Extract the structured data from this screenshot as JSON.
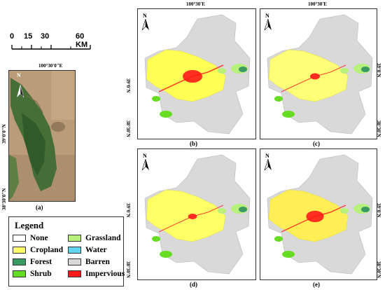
{
  "scale_bar": {
    "ticks": [
      "0",
      "15",
      "30",
      "60 KM"
    ]
  },
  "overview": {
    "top_coord": "100°30'0\"E",
    "left_coord_1": "39°0'0\"N",
    "left_coord_2": "38°30'0\"N",
    "caption": "(a)"
  },
  "panels": [
    {
      "caption": "(b)",
      "top_coord": "100°30'E",
      "lat1": "39°0'N",
      "lat2": "38°30'N",
      "north": "N"
    },
    {
      "caption": "(c)",
      "top_coord": "100°30'E",
      "lat1": "39°0'N",
      "lat2": "38°30'N",
      "north": "N"
    },
    {
      "caption": "(d)",
      "lat1": "39°0'N",
      "lat2": "38°30'N",
      "north": "N"
    },
    {
      "caption": "(e)",
      "lat1": "39°0'N",
      "lat2": "38°30'N",
      "north": "N"
    }
  ],
  "overview_north": "N",
  "legend": {
    "title": "Legend",
    "items": [
      {
        "label": "None",
        "color": "#ffffff"
      },
      {
        "label": "Cropland",
        "color": "#ffff66"
      },
      {
        "label": "Forest",
        "color": "#3a9a63"
      },
      {
        "label": "Shrub",
        "color": "#66dd22"
      },
      {
        "label": "Grassland",
        "color": "#b7f07a"
      },
      {
        "label": "Water",
        "color": "#5ed6f0"
      },
      {
        "label": "Barren",
        "color": "#d9d9d9"
      },
      {
        "label": "Impervious",
        "color": "#ff1a1a"
      }
    ]
  }
}
